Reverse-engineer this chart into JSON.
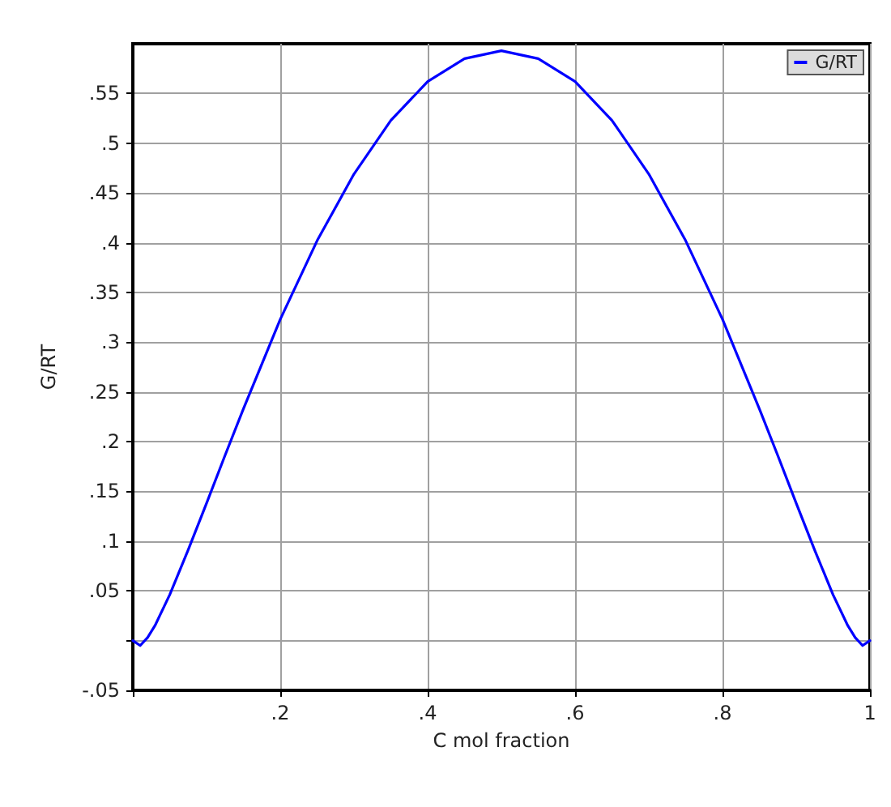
{
  "chart_data": {
    "type": "line",
    "xlabel": "C mol fraction",
    "ylabel": "G/RT",
    "x": [
      0,
      0.01,
      0.02,
      0.03,
      0.05,
      0.075,
      0.1,
      0.125,
      0.15,
      0.2,
      0.25,
      0.3,
      0.35,
      0.4,
      0.45,
      0.5,
      0.55,
      0.6,
      0.65,
      0.7,
      0.75,
      0.8,
      0.85,
      0.875,
      0.9,
      0.925,
      0.95,
      0.97,
      0.98,
      0.99,
      1
    ],
    "series": [
      {
        "name": "G/RT",
        "color": "#0000ff",
        "values": [
          0,
          -0.005,
          0.003,
          0.015,
          0.046,
          0.091,
          0.138,
          0.186,
          0.233,
          0.323,
          0.402,
          0.469,
          0.523,
          0.562,
          0.585,
          0.593,
          0.585,
          0.562,
          0.523,
          0.469,
          0.402,
          0.323,
          0.233,
          0.186,
          0.138,
          0.091,
          0.046,
          0.015,
          0.003,
          -0.005,
          0
        ]
      }
    ],
    "xlim": [
      0,
      1
    ],
    "xticks": [
      {
        "value": 0,
        "label": null
      },
      {
        "value": 0.2,
        "label": ".2"
      },
      {
        "value": 0.4,
        "label": ".4"
      },
      {
        "value": 0.6,
        "label": ".6"
      },
      {
        "value": 0.8,
        "label": ".8"
      },
      1
    ],
    "ylim": [
      -0.05,
      0.6
    ],
    "yticks": [
      {
        "value": -0.05,
        "label": "-.05"
      },
      {
        "value": 0,
        "label": null
      },
      {
        "value": 0.05,
        "label": ".05"
      },
      {
        "value": 0.1,
        "label": ".1"
      },
      {
        "value": 0.15,
        "label": ".15"
      },
      {
        "value": 0.2,
        "label": ".2"
      },
      {
        "value": 0.25,
        "label": ".25"
      },
      {
        "value": 0.3,
        "label": ".3"
      },
      {
        "value": 0.35,
        "label": ".35"
      },
      {
        "value": 0.4,
        "label": ".4"
      },
      {
        "value": 0.45,
        "label": ".45"
      },
      {
        "value": 0.5,
        "label": ".5"
      },
      {
        "value": 0.55,
        "label": ".55"
      }
    ],
    "grid": true,
    "legend": "top right",
    "marker": "none",
    "line_style": "solid"
  }
}
